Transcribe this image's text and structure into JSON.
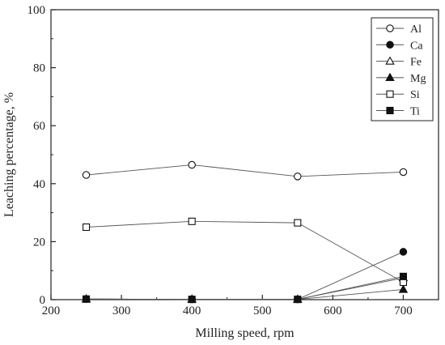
{
  "chart_data": {
    "type": "line",
    "xlabel": "Milling speed, rpm",
    "ylabel": "Leaching percentage, %",
    "xlim": [
      200,
      750
    ],
    "ylim": [
      0,
      100
    ],
    "xticks": [
      "200",
      "300",
      "400",
      "500",
      "600",
      "700"
    ],
    "yticks": [
      "0",
      "20",
      "40",
      "60",
      "80",
      "100"
    ],
    "x": [
      250,
      400,
      550,
      700
    ],
    "grid": false,
    "legend_position": "top-right",
    "series": [
      {
        "name": "Al",
        "marker": "circle-open",
        "values": [
          43,
          46.5,
          42.5,
          44
        ]
      },
      {
        "name": "Ca",
        "marker": "circle-filled",
        "values": [
          0.2,
          0.1,
          0.1,
          16.5
        ]
      },
      {
        "name": "Fe",
        "marker": "triangle-open",
        "values": [
          0.2,
          0.1,
          0.1,
          7.5
        ]
      },
      {
        "name": "Mg",
        "marker": "triangle-filled",
        "values": [
          0.2,
          0.1,
          0.1,
          3.5
        ]
      },
      {
        "name": "Si",
        "marker": "square-open",
        "values": [
          25,
          27,
          26.5,
          6
        ]
      },
      {
        "name": "Ti",
        "marker": "square-filled",
        "values": [
          0.2,
          0.1,
          0.1,
          8
        ]
      }
    ]
  }
}
